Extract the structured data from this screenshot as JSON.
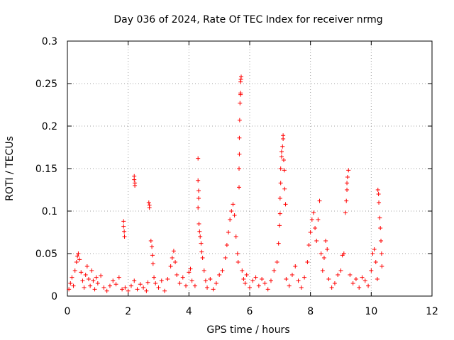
{
  "chart_data": {
    "type": "scatter",
    "title": "Day 036 of 2024, Rate Of TEC Index for receiver nrmg",
    "xlabel": "GPS time / hours",
    "ylabel": "ROTI / TECUs",
    "xlim": [
      0,
      12
    ],
    "ylim": [
      0,
      0.3
    ],
    "xticks": [
      {
        "value": 0,
        "label": "0"
      },
      {
        "value": 2,
        "label": "2"
      },
      {
        "value": 4,
        "label": "4"
      },
      {
        "value": 6,
        "label": "6"
      },
      {
        "value": 8,
        "label": "8"
      },
      {
        "value": 10,
        "label": "10"
      },
      {
        "value": 12,
        "label": "12"
      }
    ],
    "yticks": [
      {
        "value": 0,
        "label": "0"
      },
      {
        "value": 0.05,
        "label": "0.05"
      },
      {
        "value": 0.1,
        "label": "0.1"
      },
      {
        "value": 0.15,
        "label": "0.15"
      },
      {
        "value": 0.2,
        "label": "0.2"
      },
      {
        "value": 0.25,
        "label": "0.25"
      },
      {
        "value": 0.3,
        "label": "0.3"
      }
    ],
    "grid": true,
    "marker": "+",
    "color": "#ff0000",
    "series": [
      {
        "name": "ROTI",
        "points": [
          [
            0.05,
            0.008
          ],
          [
            0.1,
            0.015
          ],
          [
            0.15,
            0.022
          ],
          [
            0.2,
            0.012
          ],
          [
            0.25,
            0.03
          ],
          [
            0.3,
            0.04
          ],
          [
            0.33,
            0.047
          ],
          [
            0.36,
            0.05
          ],
          [
            0.4,
            0.043
          ],
          [
            0.45,
            0.028
          ],
          [
            0.5,
            0.018
          ],
          [
            0.55,
            0.01
          ],
          [
            0.6,
            0.025
          ],
          [
            0.65,
            0.035
          ],
          [
            0.7,
            0.02
          ],
          [
            0.75,
            0.012
          ],
          [
            0.8,
            0.03
          ],
          [
            0.85,
            0.018
          ],
          [
            0.9,
            0.008
          ],
          [
            0.95,
            0.022
          ],
          [
            1.0,
            0.015
          ],
          [
            1.1,
            0.024
          ],
          [
            1.2,
            0.01
          ],
          [
            1.3,
            0.006
          ],
          [
            1.4,
            0.012
          ],
          [
            1.5,
            0.018
          ],
          [
            1.6,
            0.014
          ],
          [
            1.7,
            0.022
          ],
          [
            1.8,
            0.008
          ],
          [
            1.85,
            0.088
          ],
          [
            1.85,
            0.082
          ],
          [
            1.87,
            0.076
          ],
          [
            1.88,
            0.07
          ],
          [
            1.9,
            0.01
          ],
          [
            2.0,
            0.006
          ],
          [
            2.1,
            0.012
          ],
          [
            2.2,
            0.018
          ],
          [
            2.3,
            0.008
          ],
          [
            2.4,
            0.014
          ],
          [
            2.5,
            0.01
          ],
          [
            2.6,
            0.006
          ],
          [
            2.65,
            0.016
          ],
          [
            2.2,
            0.141
          ],
          [
            2.2,
            0.137
          ],
          [
            2.22,
            0.133
          ],
          [
            2.22,
            0.13
          ],
          [
            2.68,
            0.11
          ],
          [
            2.7,
            0.107
          ],
          [
            2.7,
            0.104
          ],
          [
            2.75,
            0.065
          ],
          [
            2.78,
            0.058
          ],
          [
            2.8,
            0.048
          ],
          [
            2.82,
            0.038
          ],
          [
            2.85,
            0.022
          ],
          [
            2.9,
            0.015
          ],
          [
            3.0,
            0.01
          ],
          [
            3.1,
            0.018
          ],
          [
            3.2,
            0.006
          ],
          [
            3.3,
            0.02
          ],
          [
            3.4,
            0.035
          ],
          [
            3.45,
            0.045
          ],
          [
            3.5,
            0.053
          ],
          [
            3.55,
            0.04
          ],
          [
            3.6,
            0.025
          ],
          [
            3.7,
            0.015
          ],
          [
            3.8,
            0.022
          ],
          [
            3.9,
            0.012
          ],
          [
            4.0,
            0.028
          ],
          [
            4.05,
            0.032
          ],
          [
            4.1,
            0.018
          ],
          [
            4.2,
            0.012
          ],
          [
            4.3,
            0.162
          ],
          [
            4.3,
            0.136
          ],
          [
            4.32,
            0.124
          ],
          [
            4.32,
            0.115
          ],
          [
            4.3,
            0.104
          ],
          [
            4.33,
            0.085
          ],
          [
            4.35,
            0.076
          ],
          [
            4.37,
            0.07
          ],
          [
            4.4,
            0.062
          ],
          [
            4.42,
            0.052
          ],
          [
            4.45,
            0.045
          ],
          [
            4.5,
            0.03
          ],
          [
            4.55,
            0.018
          ],
          [
            4.6,
            0.01
          ],
          [
            4.7,
            0.02
          ],
          [
            4.8,
            0.008
          ],
          [
            4.9,
            0.015
          ],
          [
            5.0,
            0.025
          ],
          [
            5.1,
            0.03
          ],
          [
            5.2,
            0.045
          ],
          [
            5.25,
            0.06
          ],
          [
            5.3,
            0.075
          ],
          [
            5.35,
            0.09
          ],
          [
            5.4,
            0.1
          ],
          [
            5.45,
            0.108
          ],
          [
            5.5,
            0.095
          ],
          [
            5.55,
            0.07
          ],
          [
            5.6,
            0.05
          ],
          [
            5.62,
            0.04
          ],
          [
            5.65,
            0.128
          ],
          [
            5.65,
            0.15
          ],
          [
            5.66,
            0.167
          ],
          [
            5.66,
            0.186
          ],
          [
            5.67,
            0.207
          ],
          [
            5.68,
            0.227
          ],
          [
            5.7,
            0.237
          ],
          [
            5.7,
            0.239
          ],
          [
            5.7,
            0.252
          ],
          [
            5.71,
            0.255
          ],
          [
            5.72,
            0.258
          ],
          [
            5.75,
            0.03
          ],
          [
            5.8,
            0.02
          ],
          [
            5.85,
            0.015
          ],
          [
            5.9,
            0.025
          ],
          [
            6.0,
            0.01
          ],
          [
            6.1,
            0.018
          ],
          [
            6.2,
            0.022
          ],
          [
            6.3,
            0.012
          ],
          [
            6.4,
            0.02
          ],
          [
            6.5,
            0.015
          ],
          [
            6.6,
            0.008
          ],
          [
            6.7,
            0.018
          ],
          [
            6.8,
            0.03
          ],
          [
            6.9,
            0.04
          ],
          [
            6.95,
            0.062
          ],
          [
            6.98,
            0.083
          ],
          [
            7.0,
            0.097
          ],
          [
            7.0,
            0.115
          ],
          [
            7.02,
            0.133
          ],
          [
            7.02,
            0.15
          ],
          [
            7.05,
            0.164
          ],
          [
            7.05,
            0.17
          ],
          [
            7.08,
            0.176
          ],
          [
            7.1,
            0.185
          ],
          [
            7.1,
            0.189
          ],
          [
            7.12,
            0.16
          ],
          [
            7.14,
            0.148
          ],
          [
            7.15,
            0.126
          ],
          [
            7.18,
            0.108
          ],
          [
            7.2,
            0.02
          ],
          [
            7.3,
            0.012
          ],
          [
            7.4,
            0.025
          ],
          [
            7.5,
            0.035
          ],
          [
            7.6,
            0.018
          ],
          [
            7.7,
            0.01
          ],
          [
            7.8,
            0.022
          ],
          [
            7.9,
            0.04
          ],
          [
            7.95,
            0.06
          ],
          [
            8.0,
            0.075
          ],
          [
            8.05,
            0.09
          ],
          [
            8.1,
            0.098
          ],
          [
            8.15,
            0.08
          ],
          [
            8.2,
            0.065
          ],
          [
            8.25,
            0.09
          ],
          [
            8.3,
            0.112
          ],
          [
            8.35,
            0.05
          ],
          [
            8.4,
            0.03
          ],
          [
            8.45,
            0.045
          ],
          [
            8.5,
            0.065
          ],
          [
            8.55,
            0.055
          ],
          [
            8.6,
            0.02
          ],
          [
            8.7,
            0.01
          ],
          [
            8.8,
            0.015
          ],
          [
            8.9,
            0.025
          ],
          [
            9.0,
            0.03
          ],
          [
            9.05,
            0.048
          ],
          [
            9.1,
            0.05
          ],
          [
            9.15,
            0.098
          ],
          [
            9.18,
            0.112
          ],
          [
            9.2,
            0.125
          ],
          [
            9.2,
            0.133
          ],
          [
            9.22,
            0.14
          ],
          [
            9.25,
            0.148
          ],
          [
            9.3,
            0.025
          ],
          [
            9.4,
            0.015
          ],
          [
            9.5,
            0.02
          ],
          [
            9.6,
            0.01
          ],
          [
            9.7,
            0.022
          ],
          [
            9.8,
            0.018
          ],
          [
            9.9,
            0.012
          ],
          [
            10.0,
            0.03
          ],
          [
            10.05,
            0.05
          ],
          [
            10.1,
            0.055
          ],
          [
            10.15,
            0.04
          ],
          [
            10.2,
            0.02
          ],
          [
            10.22,
            0.125
          ],
          [
            10.24,
            0.12
          ],
          [
            10.25,
            0.11
          ],
          [
            10.28,
            0.092
          ],
          [
            10.3,
            0.08
          ],
          [
            10.32,
            0.065
          ],
          [
            10.34,
            0.05
          ],
          [
            10.35,
            0.035
          ]
        ]
      }
    ]
  }
}
